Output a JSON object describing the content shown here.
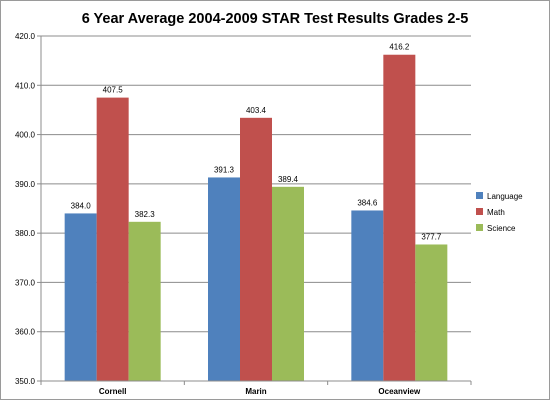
{
  "chart_data": {
    "type": "bar",
    "title": "6 Year Average 2004-2009 STAR Test Results Grades 2-5",
    "xlabel": "",
    "ylabel": "",
    "categories": [
      "Cornell",
      "Marin",
      "Oceanview"
    ],
    "series": [
      {
        "name": "Language",
        "values": [
          384.0,
          391.3,
          384.6
        ],
        "color": "#4f81bd"
      },
      {
        "name": "Math",
        "values": [
          407.5,
          403.4,
          416.2
        ],
        "color": "#c0504d"
      },
      {
        "name": "Science",
        "values": [
          382.3,
          389.4,
          377.7
        ],
        "color": "#9bbb59"
      }
    ],
    "value_labels": [
      [
        "384.0",
        "391.3",
        "384.6"
      ],
      [
        "407.5",
        "403.4",
        "416.2"
      ],
      [
        "382.3",
        "389.4",
        "377.7"
      ]
    ],
    "ylim": [
      350,
      420
    ],
    "yticks": [
      "350.0",
      "360.0",
      "370.0",
      "380.0",
      "390.0",
      "400.0",
      "410.0",
      "420.0"
    ],
    "grid": true,
    "legend_position": "right"
  }
}
